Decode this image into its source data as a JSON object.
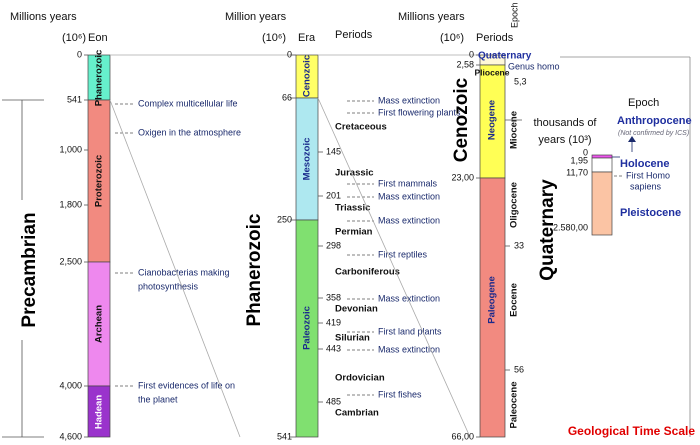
{
  "col1": {
    "header": "Millions years",
    "unit": "(10⁶)",
    "eon_header": "Eon",
    "ticks": [
      "0",
      "541",
      "1,000",
      "1,800",
      "2,500",
      "4,000",
      "4,600"
    ],
    "eons": [
      "Phanerozoic",
      "Proterozoic",
      "Archean",
      "Hadean"
    ],
    "events": [
      [
        "Complex multicellular life"
      ],
      [
        "Oxigen in the atmosphere"
      ],
      [
        "Cianobacterias making",
        "photosynthesis"
      ],
      [
        "First evidences of life on",
        "the planet"
      ]
    ],
    "big_label": "Precambrian"
  },
  "col2": {
    "header": "Million years",
    "unit": "(10⁶)",
    "era_header": "Era",
    "periods_header": "Periods",
    "ticks": [
      "0",
      "66",
      "145",
      "201",
      "250",
      "298",
      "358",
      "419",
      "443",
      "485",
      "541"
    ],
    "eras": [
      "Cenozoic",
      "Mesozoic",
      "Paleozoic"
    ],
    "periods": [
      "Cretaceous",
      "Jurassic",
      "Triassic",
      "Permian",
      "Carboniferous",
      "Devonian",
      "Silurian",
      "Ordovician",
      "Cambrian"
    ],
    "events": [
      "Mass extinction",
      "First flowering plants",
      "First mammals",
      "Mass extinction",
      "Mass extinction",
      "First reptiles",
      "Mass extinction",
      "First land plants",
      "Mass extinction",
      "First fishes"
    ],
    "big_label": "Phanerozoic"
  },
  "col3": {
    "header": "Millions years",
    "unit": "(10⁶)",
    "periods_header": "Periods",
    "epoch_header": "Epoch",
    "ticks": [
      "0",
      "2,58",
      "23,00",
      "66,00"
    ],
    "epoch_ticks": [
      "5,3",
      "33",
      "56"
    ],
    "periods": [
      "Quaternary",
      "Neogene",
      "Paleogene"
    ],
    "epochs": [
      "Pliocene",
      "Miocene",
      "Oligocene",
      "Eocene",
      "Paleocene"
    ],
    "note": "Genus homo",
    "big_label": "Cenozoic",
    "big_label_2": "Quaternary"
  },
  "inset": {
    "header": "Epoch",
    "unit": [
      "thousands of",
      "years (10³)"
    ],
    "ticks": [
      "0",
      "1,95",
      "11,70",
      "2.580,00"
    ],
    "anthropocene": "Anthropocene",
    "anthropocene_note": "(Not confirmed by ICS)",
    "holocene": "Holocene",
    "event": [
      "First Homo",
      "sapiens"
    ],
    "pleistocene": "Pleistocene"
  },
  "footer": "Geological Time Scale"
}
